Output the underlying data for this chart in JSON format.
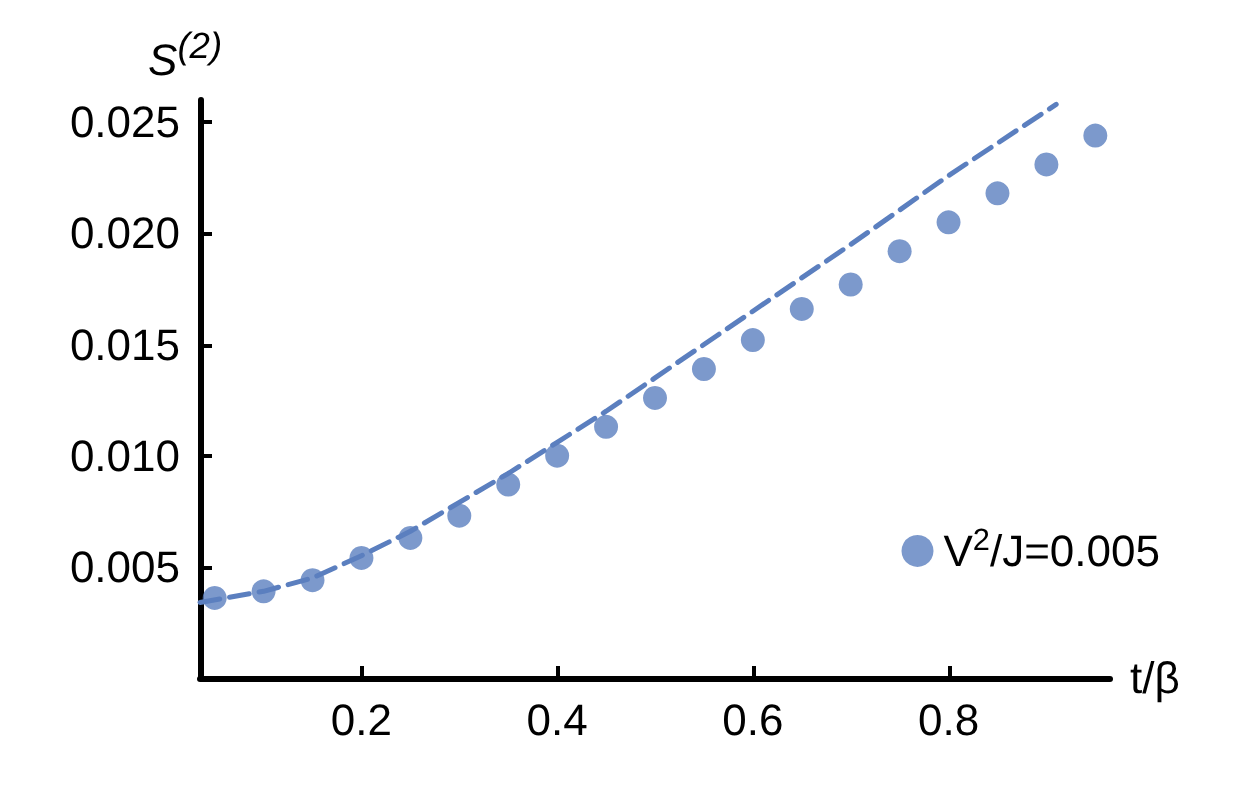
{
  "chart_data": {
    "type": "scatter",
    "xlabel": "t/β",
    "ylabel": "S$^{(2)}$",
    "xlim": [
      0.035,
      0.965
    ],
    "xticks": [
      0.2,
      0.4,
      0.6,
      0.8
    ],
    "ylim": [
      0,
      0.026
    ],
    "yticks": [
      0.005,
      {
        "value": 0.01,
        "label": "0.010"
      },
      0.015,
      {
        "value": 0.02,
        "label": "0.020"
      },
      0.025
    ],
    "grid": false,
    "legend": "right",
    "series": [
      {
        "name": "V$^{2}$/J=0.005",
        "marker": "circle",
        "color": "#5b7fbf",
        "x": [
          0.05,
          0.1,
          0.15,
          0.2,
          0.25,
          0.3,
          0.35,
          0.4,
          0.45,
          0.5,
          0.55,
          0.6,
          0.65,
          0.7,
          0.75,
          0.8,
          0.85,
          0.9,
          0.95
        ],
        "values": [
          0.0036,
          0.0039,
          0.0044,
          0.0054,
          0.0063,
          0.0073,
          0.0087,
          0.01,
          0.0113,
          0.0126,
          0.0139,
          0.0152,
          0.0166,
          0.0177,
          0.0192,
          0.0205,
          0.0218,
          0.0231,
          0.0244
        ]
      },
      {
        "type": "line",
        "marker": "none",
        "line_style": "dashed",
        "color": "#5b7fbf",
        "x": [
          0.035,
          0.1,
          0.15,
          0.2,
          0.25,
          0.3,
          0.35,
          0.4,
          0.45,
          0.5,
          0.55,
          0.6,
          0.7,
          0.8,
          0.91
        ],
        "values": [
          0.0034,
          0.0039,
          0.0045,
          0.0055,
          0.0066,
          0.0079,
          0.0092,
          0.0106,
          0.012,
          0.0135,
          0.015,
          0.0165,
          0.0195,
          0.0226,
          0.0258
        ]
      }
    ]
  }
}
